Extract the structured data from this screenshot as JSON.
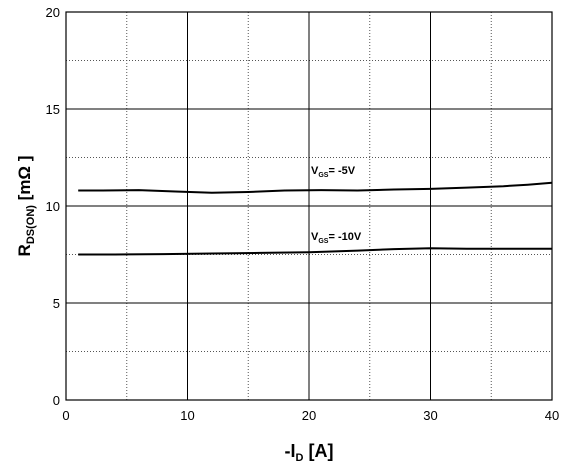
{
  "chart_data": {
    "type": "line",
    "title": "",
    "xlim": [
      0,
      40
    ],
    "ylim": [
      0,
      20
    ],
    "x_ticks": [
      0,
      10,
      20,
      30,
      40
    ],
    "y_ticks": [
      0,
      5,
      10,
      15,
      20
    ],
    "x_minor_ticks": [
      5,
      15,
      25,
      35
    ],
    "y_minor_ticks": [
      2.5,
      7.5,
      12.5,
      17.5
    ],
    "grid": true,
    "xlabel": {
      "main": "-I",
      "sub": "D",
      "tail": " [A]"
    },
    "ylabel": {
      "main": "R",
      "sub": "DS(ON)",
      "tail": " [mΩ ]"
    },
    "series": [
      {
        "label_main": "V",
        "label_sub": "GS",
        "label_tail": "= -5V",
        "x": [
          1,
          3,
          6,
          9,
          12,
          15,
          18,
          21,
          24,
          27,
          30,
          33,
          36,
          38,
          40
        ],
        "y": [
          10.8,
          10.8,
          10.82,
          10.75,
          10.68,
          10.72,
          10.8,
          10.82,
          10.8,
          10.85,
          10.88,
          10.95,
          11.02,
          11.1,
          11.2
        ]
      },
      {
        "label_main": "V",
        "label_sub": "GS",
        "label_tail": "= -10V",
        "x": [
          1,
          4,
          8,
          12,
          16,
          20,
          24,
          27,
          30,
          33,
          36,
          40
        ],
        "y": [
          7.5,
          7.5,
          7.52,
          7.55,
          7.58,
          7.62,
          7.7,
          7.78,
          7.82,
          7.8,
          7.8,
          7.8
        ]
      }
    ]
  }
}
